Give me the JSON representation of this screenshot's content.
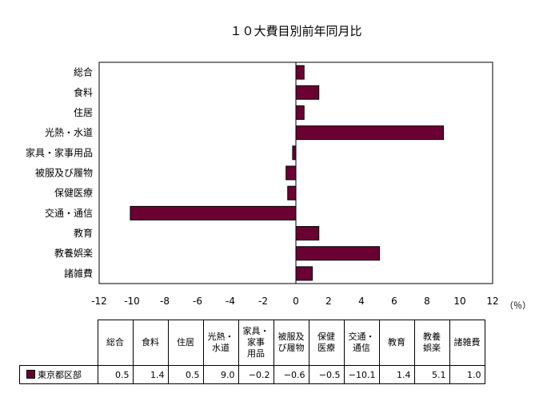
{
  "chart_data": {
    "type": "bar",
    "orientation": "horizontal",
    "title": "１０大費目別前年同月比",
    "unit_label": "（％）",
    "categories": [
      "総合",
      "食料",
      "住居",
      "光熱・水道",
      "家具・家事用品",
      "被服及び履物",
      "保健医療",
      "交通・通信",
      "教育",
      "教養娯楽",
      "諸雑費"
    ],
    "table_headers": [
      "総合",
      "食料",
      "住居",
      "光熱・\n水道",
      "家具・\n家事\n用品",
      "被服及\nび履物",
      "保健\n医療",
      "交通・\n通信",
      "教育",
      "教養\n娯楽",
      "諸雑費"
    ],
    "series": [
      {
        "name": "東京都区部",
        "color": "#6b0032",
        "values": [
          0.5,
          1.4,
          0.5,
          9.0,
          -0.2,
          -0.6,
          -0.5,
          -10.1,
          1.4,
          5.1,
          1.0
        ],
        "value_labels": [
          "0.5",
          "1.4",
          "0.5",
          "9.0",
          "−0.2",
          "−0.6",
          "−0.5",
          "−10.1",
          "1.4",
          "5.1",
          "1.0"
        ]
      }
    ],
    "xlim": [
      -12,
      12
    ],
    "x_ticks": [
      -12,
      -10,
      -8,
      -6,
      -4,
      -2,
      0,
      2,
      4,
      6,
      8,
      10,
      12
    ],
    "x_tick_labels": [
      "-12",
      "-10",
      "-8",
      "-6",
      "-4",
      "-2",
      "0",
      "2",
      "4",
      "6",
      "8",
      "10",
      "12"
    ],
    "grid": false,
    "legend_placement": "table"
  }
}
